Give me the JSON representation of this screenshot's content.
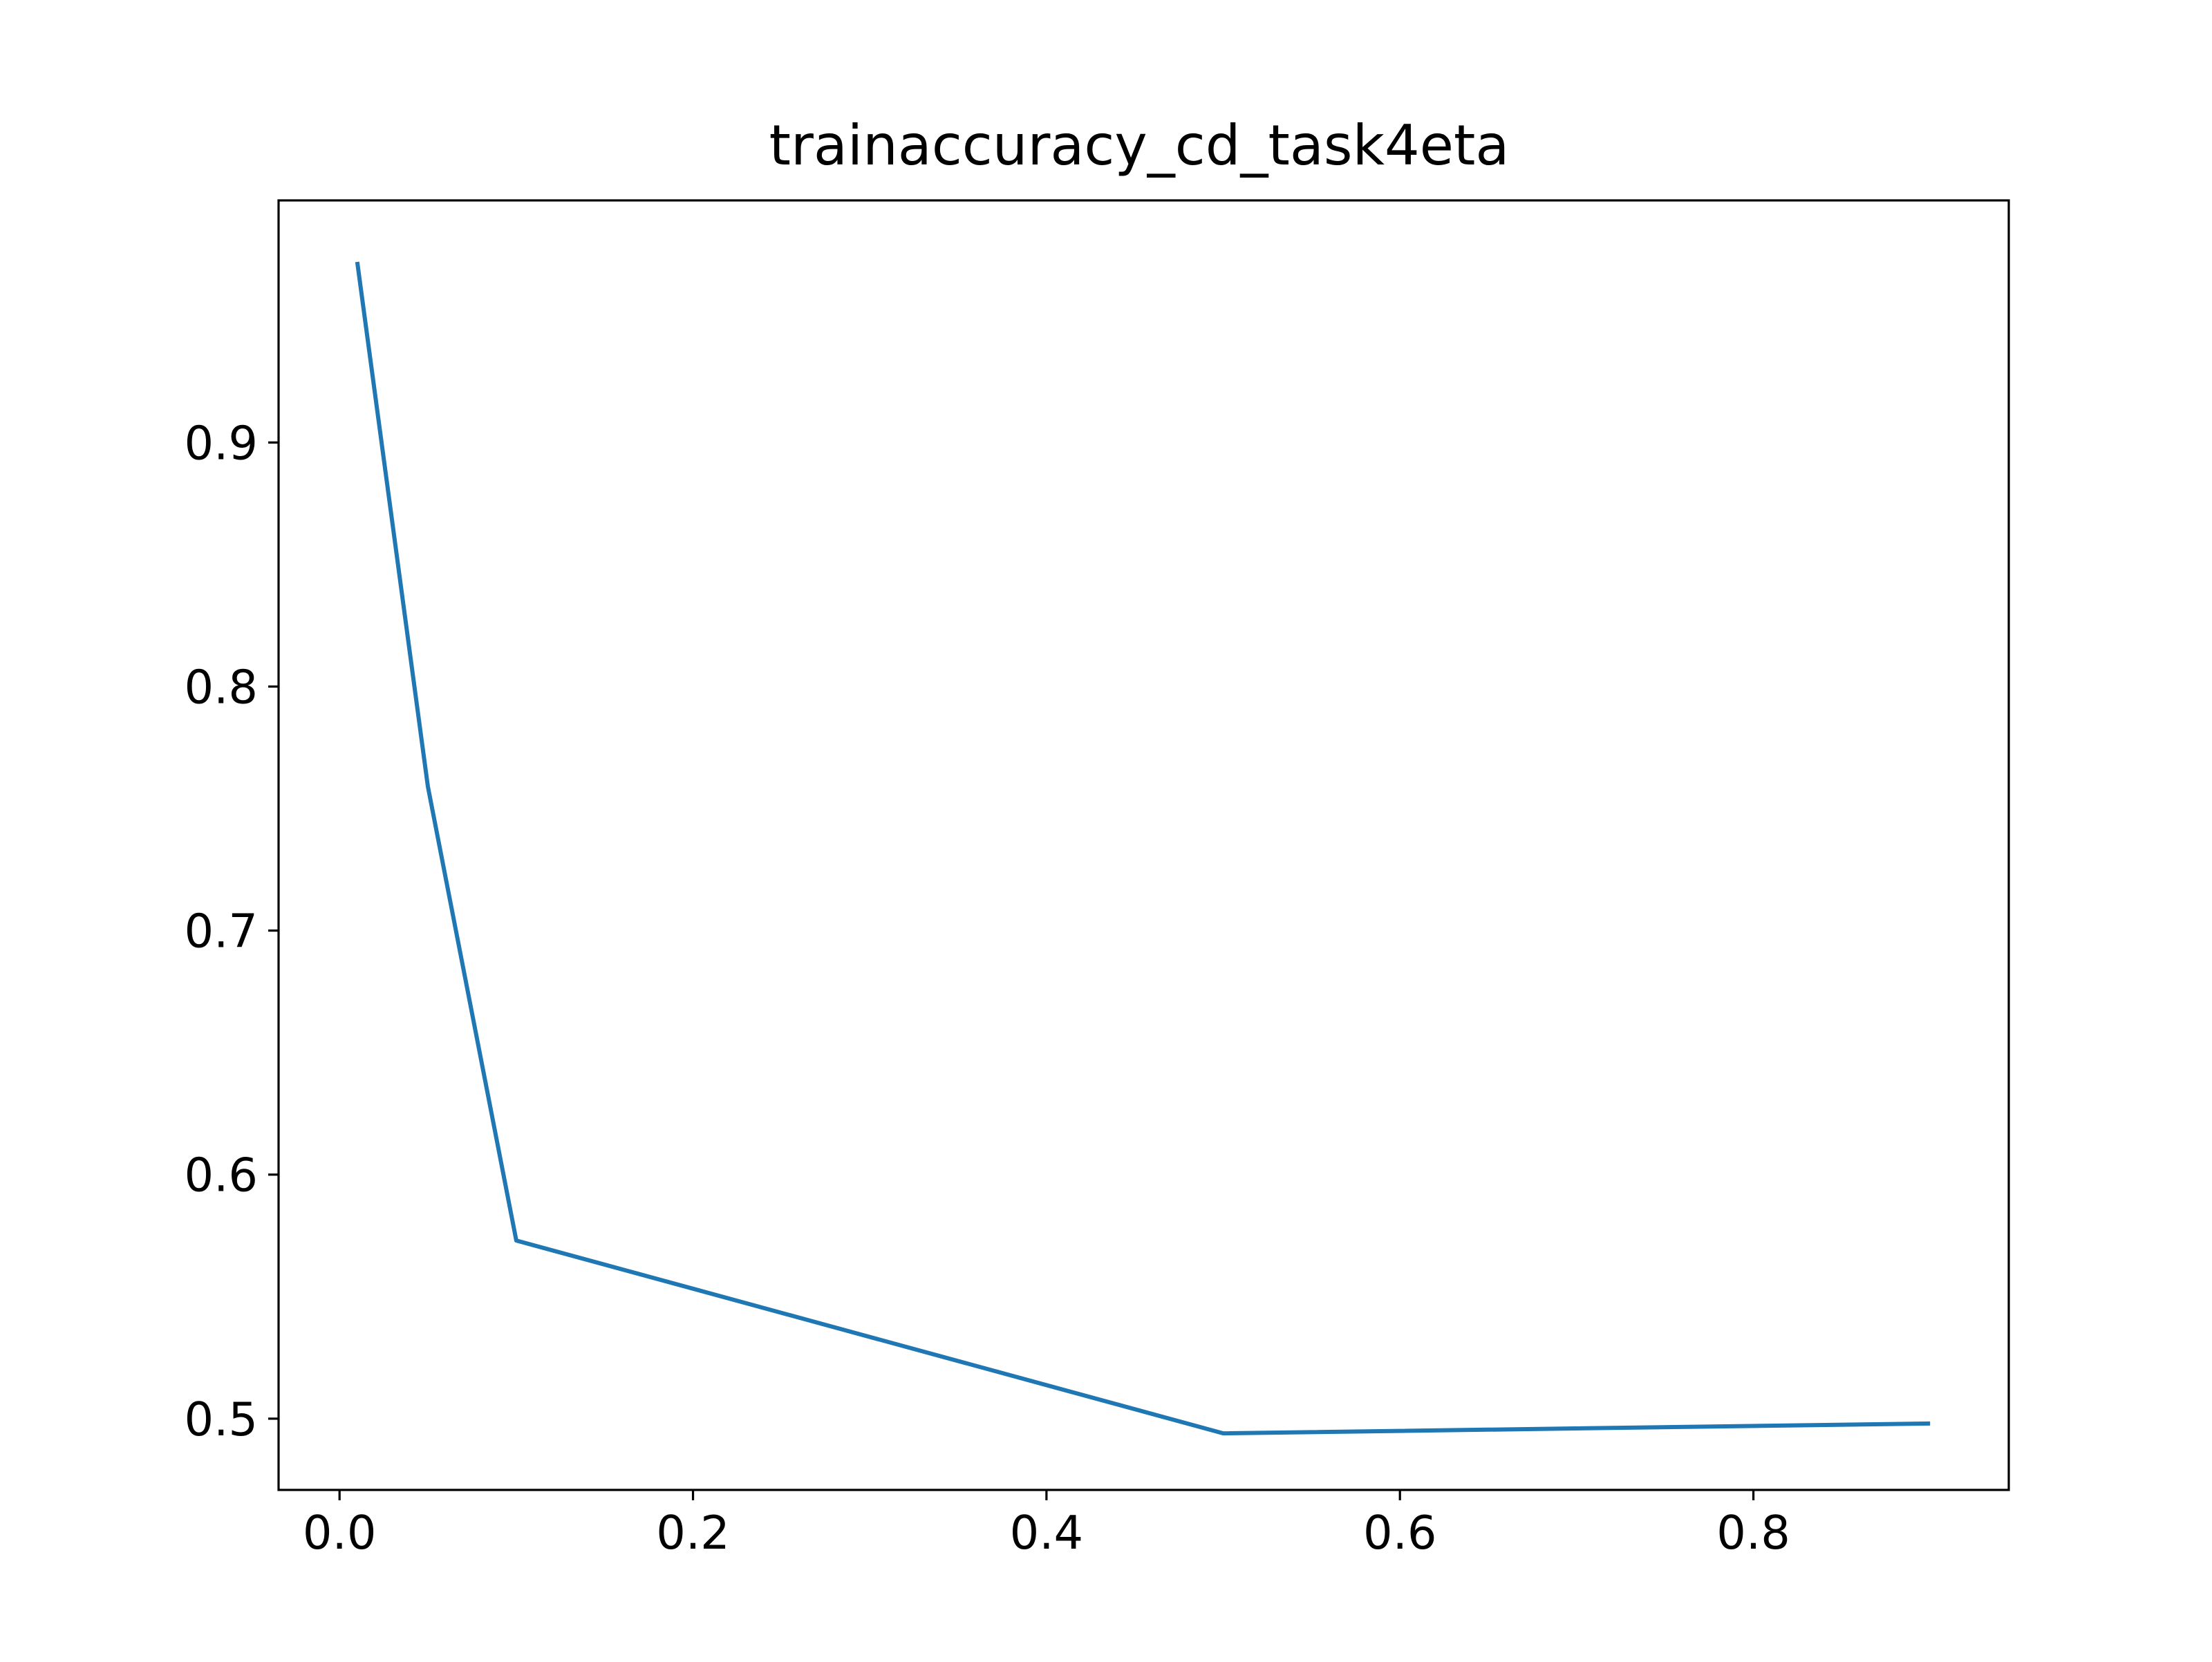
{
  "chart_data": {
    "type": "line",
    "title": "trainaccuracy_cd_task4eta",
    "xlabel": "",
    "ylabel": "",
    "x": [
      0.01,
      0.05,
      0.1,
      0.5,
      0.9
    ],
    "series": [
      {
        "values": [
          0.974,
          0.759,
          0.573,
          0.494,
          0.498
        ],
        "color": "#1f77b4"
      }
    ],
    "xlim": [
      -0.0345,
      0.9445
    ],
    "ylim": [
      0.4708,
      0.9992
    ],
    "xticks": [
      0.0,
      0.2,
      0.4,
      0.6,
      0.8
    ],
    "xtick_labels": [
      "0.0",
      "0.2",
      "0.4",
      "0.6",
      "0.8"
    ],
    "yticks": [
      0.5,
      0.6,
      0.7,
      0.8,
      0.9
    ],
    "ytick_labels": [
      "0.5",
      "0.6",
      "0.7",
      "0.8",
      "0.9"
    ],
    "grid": false,
    "legend": "none"
  }
}
